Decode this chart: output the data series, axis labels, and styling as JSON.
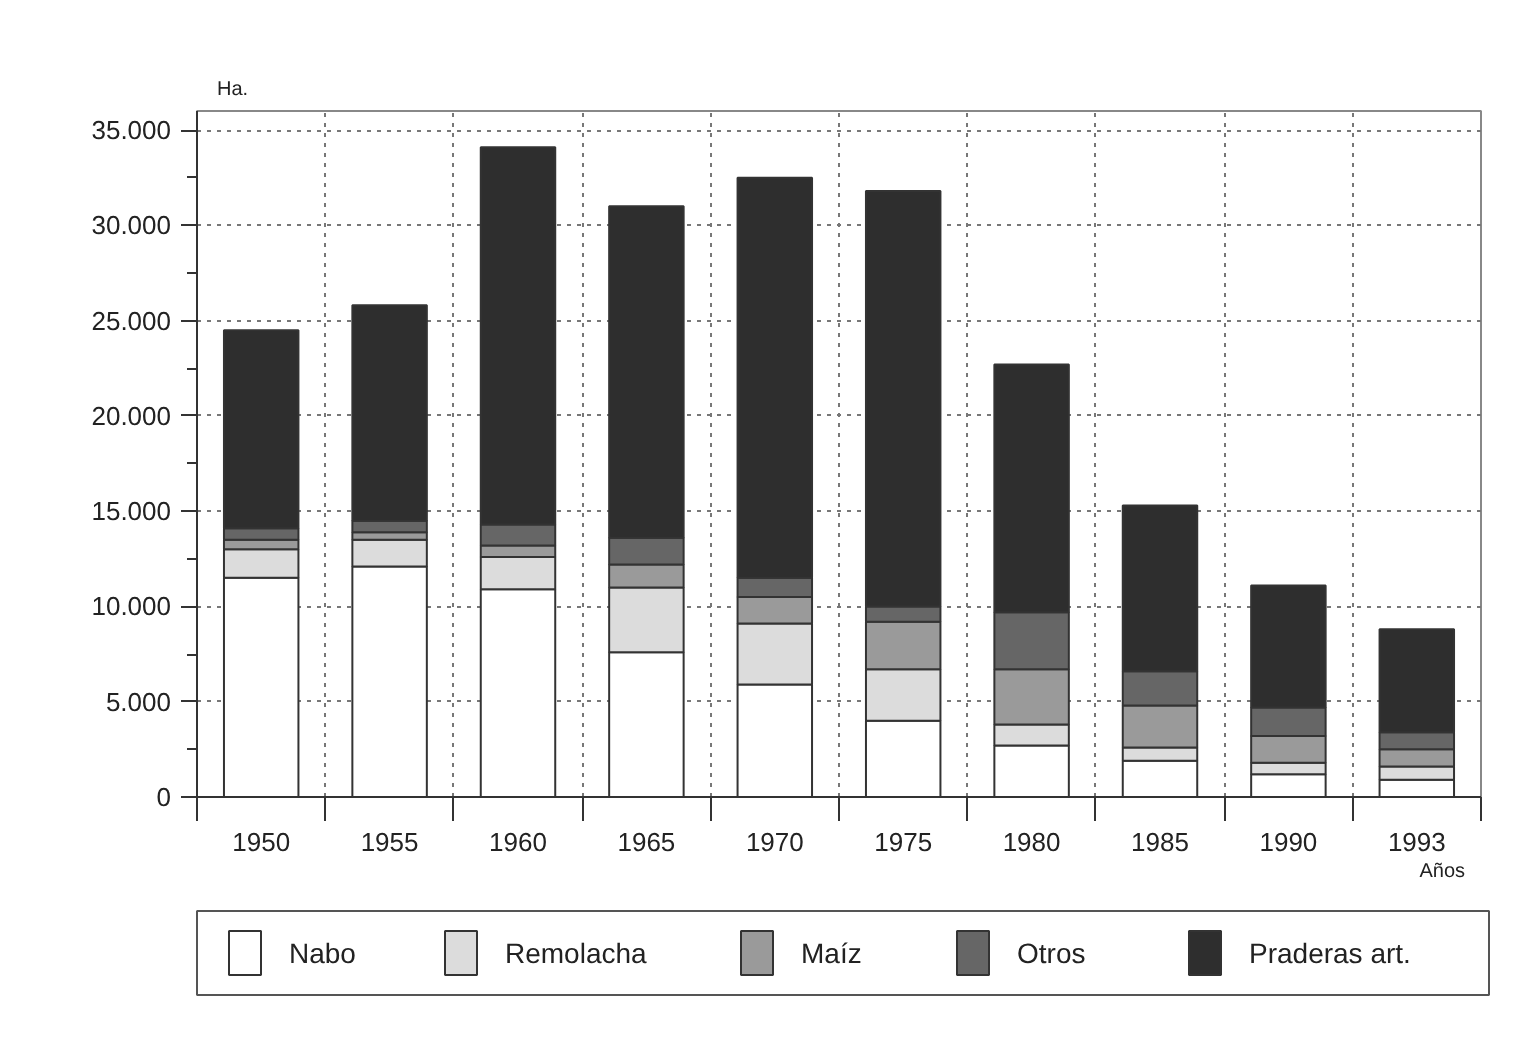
{
  "chart_data": {
    "type": "bar",
    "stacked": true,
    "ylabel": "Ha.",
    "xlabel": "Años",
    "categories": [
      "1950",
      "1955",
      "1960",
      "1965",
      "1970",
      "1975",
      "1980",
      "1985",
      "1990",
      "1993"
    ],
    "series": [
      {
        "name": "Nabo",
        "color": "#ffffff",
        "values": [
          11500,
          12100,
          10900,
          7600,
          5900,
          4000,
          2700,
          1900,
          1200,
          900
        ]
      },
      {
        "name": "Remolacha",
        "color": "#dcdcdc",
        "values": [
          1500,
          1400,
          1700,
          3400,
          3200,
          2700,
          1100,
          700,
          600,
          700
        ]
      },
      {
        "name": "Maíz",
        "color": "#9a9a9a",
        "values": [
          500,
          400,
          600,
          1200,
          1400,
          2500,
          2900,
          2200,
          1400,
          900
        ]
      },
      {
        "name": "Otros",
        "color": "#666666",
        "values": [
          600,
          600,
          1100,
          1400,
          1000,
          800,
          3000,
          1800,
          1500,
          900
        ]
      },
      {
        "name": "Praderas art.",
        "color": "#2e2e2e",
        "values": [
          10400,
          11300,
          19800,
          17400,
          21000,
          21800,
          13000,
          8700,
          6400,
          5400
        ]
      }
    ],
    "ylim": [
      0,
      36000
    ],
    "yticks": [
      0,
      {
        "value": 2500,
        "label": null
      },
      {
        "value": 5000,
        "label": "5.000"
      },
      {
        "value": 7500,
        "label": null
      },
      {
        "value": 10000,
        "label": "10.000"
      },
      {
        "value": 12500,
        "label": null
      },
      {
        "value": 15000,
        "label": "15.000"
      },
      {
        "value": 17500,
        "label": null
      },
      {
        "value": 20000,
        "label": "20.000"
      },
      {
        "value": 22500,
        "label": null
      },
      {
        "value": 25000,
        "label": "25.000"
      },
      {
        "value": 27500,
        "label": null
      },
      {
        "value": 30000,
        "label": "30.000"
      },
      {
        "value": 32500,
        "label": null
      },
      {
        "value": 35000,
        "label": "35.000"
      }
    ],
    "grid": true,
    "legend": "bottom"
  }
}
